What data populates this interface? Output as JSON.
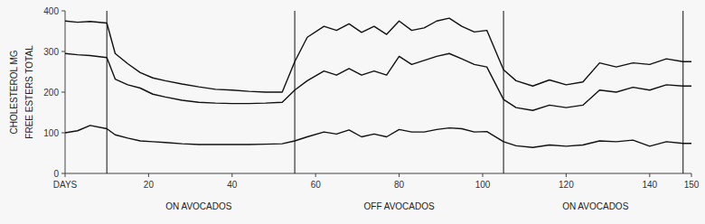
{
  "chart_data": {
    "type": "line",
    "ylabel": [
      "CHOLESTEROL MG",
      "FREE ESTERS TOTAL"
    ],
    "x": [
      0,
      3,
      6,
      10,
      12,
      15,
      18,
      21,
      24,
      28,
      32,
      36,
      40,
      44,
      48,
      52,
      55,
      58,
      62,
      65,
      68,
      71,
      74,
      77,
      80,
      83,
      86,
      89,
      92,
      95,
      98,
      101,
      105,
      108,
      112,
      116,
      120,
      124,
      128,
      132,
      136,
      140,
      144,
      148,
      150
    ],
    "series": [
      {
        "color": "#111111",
        "values": [
          375,
          372,
          374,
          370,
          295,
          270,
          248,
          235,
          228,
          220,
          213,
          207,
          205,
          202,
          200,
          200,
          275,
          335,
          362,
          352,
          368,
          347,
          362,
          342,
          375,
          352,
          358,
          375,
          382,
          362,
          348,
          352,
          255,
          228,
          215,
          230,
          218,
          225,
          272,
          262,
          272,
          268,
          282,
          275,
          275
        ]
      },
      {
        "color": "#111111",
        "values": [
          295,
          292,
          290,
          285,
          232,
          218,
          210,
          195,
          188,
          180,
          175,
          173,
          172,
          172,
          173,
          175,
          205,
          228,
          252,
          242,
          258,
          242,
          252,
          242,
          288,
          268,
          278,
          288,
          295,
          282,
          268,
          262,
          182,
          162,
          155,
          168,
          162,
          168,
          205,
          200,
          212,
          205,
          218,
          215,
          215
        ]
      },
      {
        "color": "#111111",
        "values": [
          100,
          105,
          118,
          110,
          95,
          87,
          80,
          78,
          76,
          73,
          71,
          71,
          71,
          71,
          72,
          73,
          80,
          90,
          102,
          97,
          107,
          90,
          97,
          90,
          108,
          102,
          102,
          108,
          112,
          110,
          102,
          103,
          78,
          68,
          64,
          70,
          67,
          70,
          80,
          78,
          82,
          67,
          78,
          74,
          74
        ]
      }
    ],
    "vlines": [
      10,
      55,
      105,
      148
    ],
    "annotations": [
      {
        "text": "ON AVOCADOS",
        "x": 32
      },
      {
        "text": "OFF AVOCADOS",
        "x": 80
      },
      {
        "text": "ON AVOCADOS",
        "x": 127
      }
    ],
    "xlim": [
      0,
      150
    ],
    "xticks": [
      {
        "value": 0,
        "label": "DAYS"
      },
      20,
      40,
      60,
      80,
      100,
      120,
      140,
      150
    ],
    "ylim": [
      0,
      400
    ],
    "yticks": [
      0,
      100,
      200,
      300,
      400
    ],
    "grid": false
  }
}
